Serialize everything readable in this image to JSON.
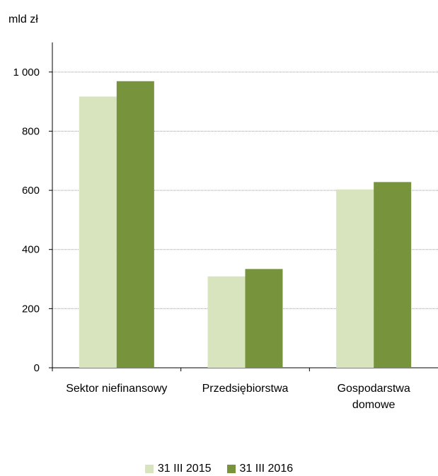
{
  "unit_label": "mld zł",
  "chart_data": {
    "type": "bar",
    "ylabel": "mld zł",
    "ylim": [
      0,
      1100
    ],
    "yticks": [
      0,
      200,
      400,
      600,
      800,
      1000
    ],
    "ytick_labels": [
      "0",
      "200",
      "400",
      "600",
      "800",
      "1 000"
    ],
    "grid": true,
    "legend_position": "bottom",
    "categories": [
      [
        "Sektor niefinansowy"
      ],
      [
        "Przedsiębiorstwa"
      ],
      [
        "Gospodarstwa",
        "domowe"
      ]
    ],
    "series": [
      {
        "name": "31 III 2015",
        "color": "#d7e4bd",
        "values": [
          917,
          309,
          603
        ]
      },
      {
        "name": "31 III 2016",
        "color": "#77933c",
        "values": [
          969,
          334,
          628
        ]
      }
    ]
  }
}
